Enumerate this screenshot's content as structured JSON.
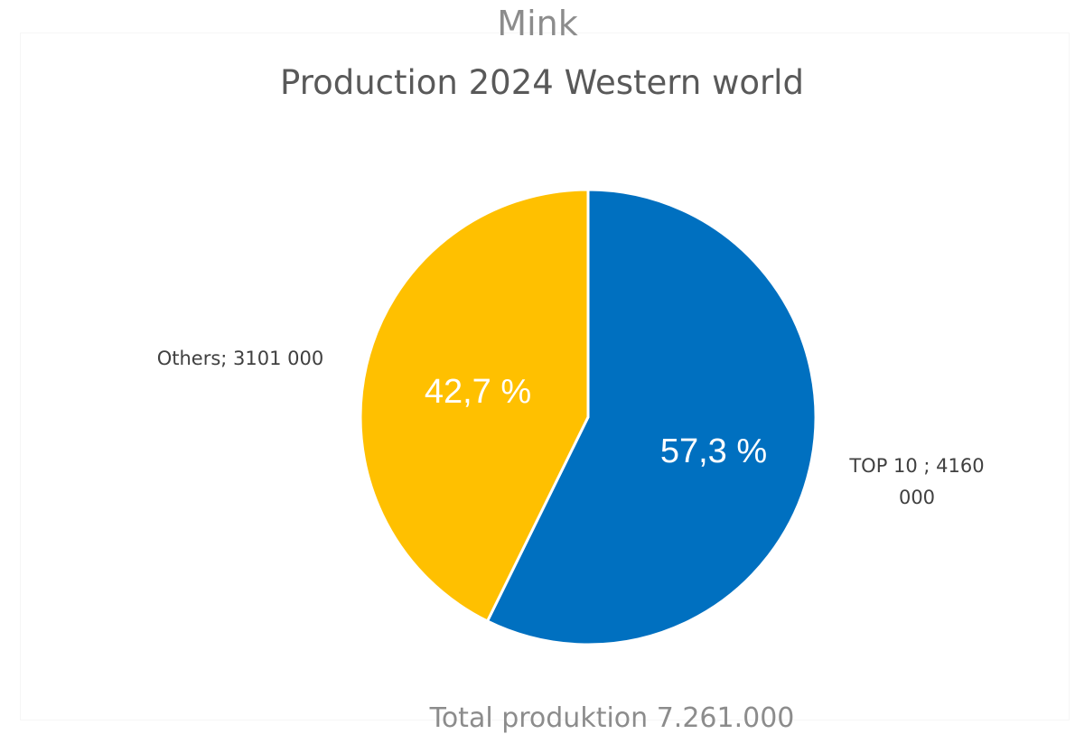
{
  "chart_data": {
    "type": "pie",
    "title": "Mink",
    "subtitle": "Production 2024 Western world",
    "footer": "Total produktion  7.261.000",
    "series": [
      {
        "slices": [
          {
            "label": "TOP 10",
            "value": 4160000,
            "value_text_line1": "TOP 10 ;  4160",
            "value_text_line2": "000",
            "percent_text": "57,3 %",
            "color": "#0070C0"
          },
          {
            "label": "Others",
            "value": 3101000,
            "value_text_line1": "Others;  3101 000",
            "percent_text": "42,7 %",
            "color": "#FFC000"
          }
        ]
      }
    ],
    "start_angle_deg": 0,
    "direction": "clockwise",
    "slice_border_color": "#FFFFFF"
  }
}
